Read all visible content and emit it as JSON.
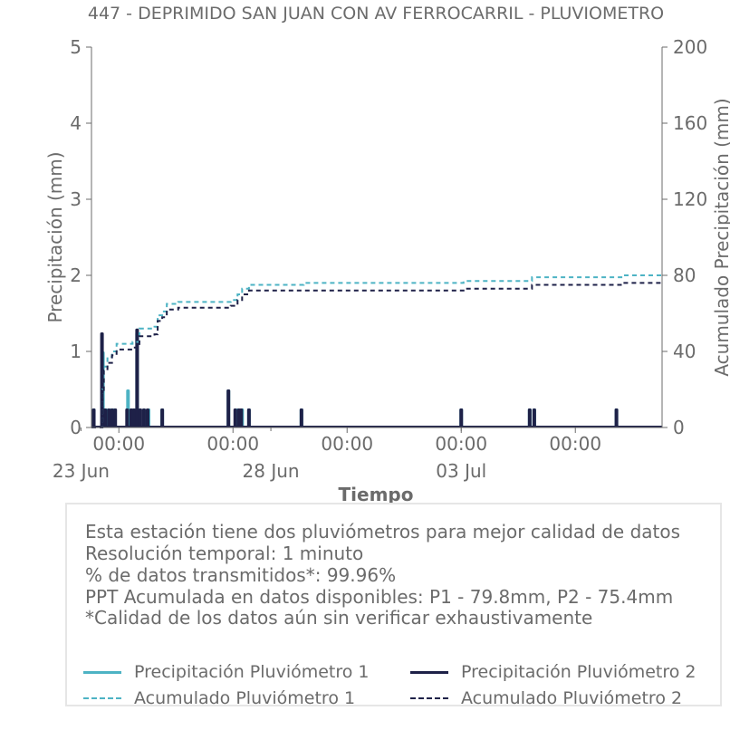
{
  "chart_data": {
    "type": "line",
    "title": "447 - DEPRIMIDO SAN JUAN CON AV FERROCARRIL - PLUVIOMETRO",
    "xlabel": "Tiempo",
    "ylabel": "Precipitación (mm)",
    "y2label": "Acumulado Precipitación (mm)",
    "ylim": [
      0,
      5
    ],
    "y2lim": [
      0,
      200
    ],
    "yticks": [
      0,
      1,
      2,
      3,
      4,
      5
    ],
    "y2ticks": [
      0,
      40,
      80,
      120,
      160,
      200
    ],
    "xlim": [
      -0.6,
      11.9
    ],
    "xticks": [
      {
        "x": 0,
        "label": "00:00"
      },
      {
        "x": 2.5,
        "label": "00:00"
      },
      {
        "x": 5,
        "label": "00:00"
      },
      {
        "x": 7.5,
        "label": "00:00"
      },
      {
        "x": 10,
        "label": "00:00"
      }
    ],
    "xminorticks": [
      -0.83,
      3.33,
      7.5
    ],
    "date_labels": [
      {
        "x": -0.83,
        "label": "23 Jun"
      },
      {
        "x": 3.33,
        "label": "28 Jun"
      },
      {
        "x": 7.5,
        "label": "03 Jul"
      }
    ],
    "colors": {
      "p1": "#4db3c4",
      "p2": "#1e2148",
      "axis": "#6b6b6b"
    },
    "series": [
      {
        "name": "Precipitación Pluviómetro 1",
        "style": "bar",
        "color": "#4db3c4",
        "points": [
          [
            -0.55,
            0.25
          ],
          [
            -0.35,
            1.0
          ],
          [
            -0.28,
            0.25
          ],
          [
            -0.2,
            0.25
          ],
          [
            -0.12,
            0.25
          ],
          [
            0.2,
            0.5
          ],
          [
            0.28,
            0.25
          ],
          [
            0.38,
            0.25
          ],
          [
            0.4,
            1.25
          ],
          [
            0.45,
            0.25
          ],
          [
            0.55,
            0.25
          ],
          [
            0.65,
            0.25
          ],
          [
            0.95,
            0.25
          ],
          [
            2.4,
            0.5
          ],
          [
            2.6,
            0.25
          ],
          [
            2.7,
            0.25
          ],
          [
            2.85,
            0.25
          ],
          [
            4.0,
            0.25
          ],
          [
            7.5,
            0.25
          ],
          [
            9.0,
            0.25
          ],
          [
            9.1,
            0.25
          ],
          [
            10.9,
            0.25
          ]
        ]
      },
      {
        "name": "Precipitación Pluviómetro 2",
        "style": "bar",
        "color": "#1e2148",
        "points": [
          [
            -0.55,
            0.25
          ],
          [
            -0.37,
            1.25
          ],
          [
            -0.3,
            0.25
          ],
          [
            -0.22,
            0.25
          ],
          [
            -0.15,
            0.25
          ],
          [
            -0.08,
            0.25
          ],
          [
            0.18,
            0.25
          ],
          [
            0.27,
            0.25
          ],
          [
            0.33,
            0.25
          ],
          [
            0.4,
            1.3
          ],
          [
            0.47,
            0.25
          ],
          [
            0.55,
            0.25
          ],
          [
            0.63,
            0.25
          ],
          [
            0.95,
            0.25
          ],
          [
            2.4,
            0.5
          ],
          [
            2.55,
            0.25
          ],
          [
            2.63,
            0.25
          ],
          [
            2.68,
            0.25
          ],
          [
            2.85,
            0.25
          ],
          [
            4.0,
            0.25
          ],
          [
            7.5,
            0.25
          ],
          [
            9.0,
            0.25
          ],
          [
            9.1,
            0.25
          ],
          [
            10.9,
            0.25
          ]
        ]
      },
      {
        "name": "Acumulado Pluviómetro 1",
        "style": "dashed-step",
        "axis": "right",
        "color": "#4db3c4",
        "points": [
          [
            -0.6,
            0
          ],
          [
            -0.4,
            0
          ],
          [
            -0.36,
            20
          ],
          [
            -0.33,
            32
          ],
          [
            -0.25,
            37
          ],
          [
            -0.15,
            40
          ],
          [
            -0.05,
            44
          ],
          [
            0.2,
            44
          ],
          [
            0.3,
            45
          ],
          [
            0.45,
            52
          ],
          [
            0.75,
            52
          ],
          [
            0.78,
            53
          ],
          [
            0.85,
            59
          ],
          [
            0.95,
            61
          ],
          [
            1.05,
            65
          ],
          [
            1.3,
            66
          ],
          [
            2.4,
            66
          ],
          [
            2.45,
            67
          ],
          [
            2.6,
            70
          ],
          [
            2.7,
            73
          ],
          [
            2.85,
            75
          ],
          [
            4.0,
            75
          ],
          [
            4.05,
            76
          ],
          [
            7.5,
            76
          ],
          [
            7.55,
            77
          ],
          [
            9.0,
            77
          ],
          [
            9.05,
            79
          ],
          [
            11.0,
            79
          ],
          [
            11.05,
            80
          ],
          [
            11.9,
            80
          ]
        ]
      },
      {
        "name": "Acumulado Pluviómetro 2",
        "style": "dashed-step",
        "axis": "right",
        "color": "#1e2148",
        "points": [
          [
            -0.6,
            0
          ],
          [
            -0.4,
            0
          ],
          [
            -0.36,
            18
          ],
          [
            -0.33,
            30
          ],
          [
            -0.25,
            34
          ],
          [
            -0.15,
            38
          ],
          [
            -0.05,
            41
          ],
          [
            0.2,
            41
          ],
          [
            0.3,
            42
          ],
          [
            0.45,
            48
          ],
          [
            0.75,
            48
          ],
          [
            0.78,
            49
          ],
          [
            0.85,
            56
          ],
          [
            0.95,
            58
          ],
          [
            1.05,
            62
          ],
          [
            1.3,
            63
          ],
          [
            2.4,
            63
          ],
          [
            2.45,
            64
          ],
          [
            2.6,
            67
          ],
          [
            2.7,
            70
          ],
          [
            2.85,
            72
          ],
          [
            7.5,
            72
          ],
          [
            7.55,
            73
          ],
          [
            9.0,
            73
          ],
          [
            9.05,
            75
          ],
          [
            11.0,
            75
          ],
          [
            11.05,
            76
          ],
          [
            11.9,
            76
          ]
        ]
      }
    ]
  },
  "info_box": {
    "lines": [
      "Esta estación tiene dos pluviómetros para mejor calidad de datos",
      "Resolución temporal: 1 minuto",
      "% de datos transmitidos*: 99.96%",
      "PPT Acumulada en datos disponibles: P1 - 79.8mm, P2 - 75.4mm",
      "*Calidad de los datos aún sin verificar exhaustivamente"
    ]
  },
  "legend": {
    "items": [
      {
        "label": "Precipitación Pluviómetro 1",
        "color": "#4db3c4",
        "style": "solid"
      },
      {
        "label": "Precipitación Pluviómetro 2",
        "color": "#1e2148",
        "style": "solid"
      },
      {
        "label": "Acumulado Pluviómetro 1",
        "color": "#4db3c4",
        "style": "dashed"
      },
      {
        "label": "Acumulado Pluviómetro 2",
        "color": "#1e2148",
        "style": "dashed"
      }
    ]
  }
}
